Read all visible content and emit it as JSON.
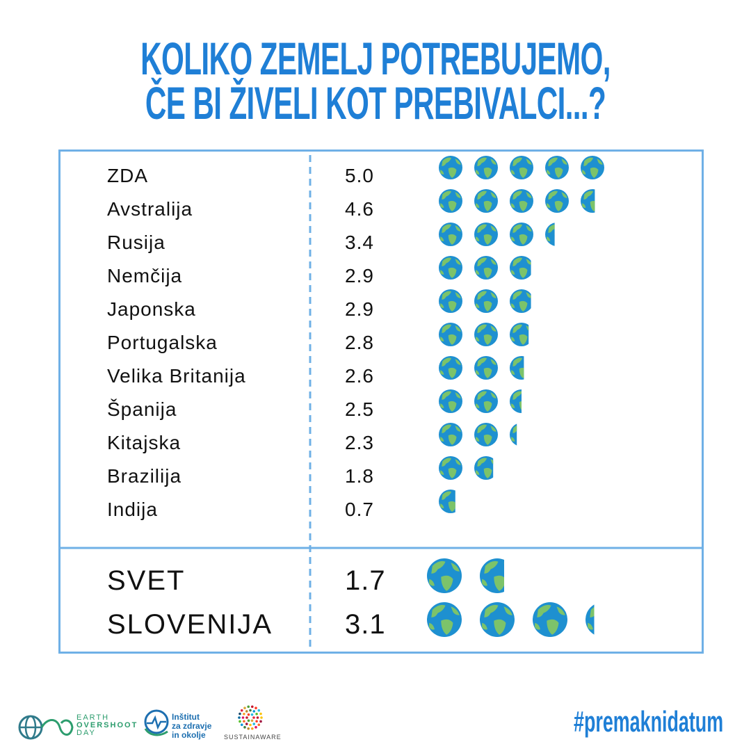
{
  "title": {
    "line1": "KOLIKO ZEMELJ POTREBUJEMO,",
    "line2": "ČE BI ŽIVELI KOT PREBIVALCI...?"
  },
  "chart_data": {
    "type": "table",
    "rows": [
      {
        "country": "ZDA",
        "earths": 5.0,
        "label": "5.0"
      },
      {
        "country": "Avstralija",
        "earths": 4.6,
        "label": "4.6"
      },
      {
        "country": "Rusija",
        "earths": 3.4,
        "label": "3.4"
      },
      {
        "country": "Nemčija",
        "earths": 2.9,
        "label": "2.9"
      },
      {
        "country": "Japonska",
        "earths": 2.9,
        "label": "2.9"
      },
      {
        "country": "Portugalska",
        "earths": 2.8,
        "label": "2.8"
      },
      {
        "country": "Velika Britanija",
        "earths": 2.6,
        "label": "2.6"
      },
      {
        "country": "Španija",
        "earths": 2.5,
        "label": "2.5"
      },
      {
        "country": "Kitajska",
        "earths": 2.3,
        "label": "2.3"
      },
      {
        "country": "Brazilija",
        "earths": 1.8,
        "label": "1.8"
      },
      {
        "country": "Indija",
        "earths": 0.7,
        "label": "0.7"
      }
    ],
    "summary": [
      {
        "country": "SVET",
        "earths": 1.7,
        "label": "1.7"
      },
      {
        "country": "SLOVENIJA",
        "earths": 3.1,
        "label": "3.1"
      }
    ]
  },
  "footer": {
    "eod_line1": "EARTH",
    "eod_line2": "OVERSHOOT",
    "eod_line3": "DAY",
    "izo_line1": "Inštitut",
    "izo_line2": "za zdravje",
    "izo_line3": "in okolje",
    "sa_label": "SUSTAINAWARE",
    "hashtag": "#premaknidatum"
  },
  "colors": {
    "accent": "#1f7fd6",
    "frame": "#6fb0e6",
    "ocean": "#1e90d0",
    "land": "#7cc36a",
    "brand_green": "#2d9d6e"
  },
  "icons": {
    "earth": "globe-icon"
  }
}
